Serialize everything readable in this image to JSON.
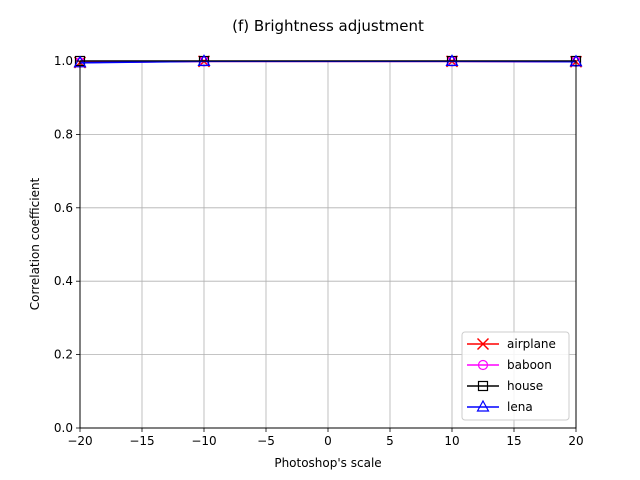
{
  "chart_data": {
    "type": "line",
    "title": "(f) Brightness adjustment",
    "xlabel": "Photoshop's scale",
    "ylabel": "Correlation coefficient",
    "xlim": [
      -20,
      20
    ],
    "ylim": [
      0,
      1.0
    ],
    "xticks": [
      -20,
      -15,
      -10,
      -5,
      0,
      5,
      10,
      15,
      20
    ],
    "yticks": [
      0.0,
      0.2,
      0.4,
      0.6,
      0.8,
      1.0
    ],
    "xtick_labels": [
      "−20",
      "−15",
      "−10",
      "−5",
      "0",
      "5",
      "10",
      "15",
      "20"
    ],
    "ytick_labels": [
      "0.0",
      "0.2",
      "0.4",
      "0.6",
      "0.8",
      "1.0"
    ],
    "grid": true,
    "legend_position": "lower-right",
    "x": [
      -20,
      -10,
      10,
      20
    ],
    "series": [
      {
        "name": "airplane",
        "color": "#ff0000",
        "marker": "x",
        "values": [
          0.996,
          0.999,
          0.999,
          0.998
        ]
      },
      {
        "name": "baboon",
        "color": "#ff00ff",
        "marker": "circle",
        "values": [
          0.996,
          0.999,
          0.999,
          0.998
        ]
      },
      {
        "name": "house",
        "color": "#000000",
        "marker": "square",
        "values": [
          1.0,
          1.0,
          1.0,
          1.0
        ]
      },
      {
        "name": "lena",
        "color": "#0000ff",
        "marker": "triangle",
        "values": [
          0.995,
          0.999,
          0.999,
          0.998
        ]
      }
    ]
  }
}
